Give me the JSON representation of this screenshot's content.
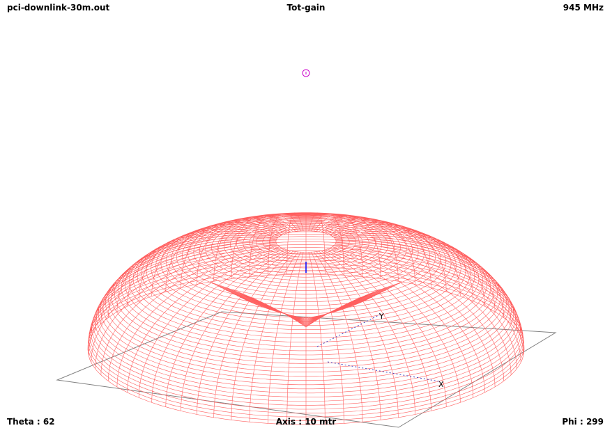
{
  "header": {
    "file_name": "pci-downlink-30m.out",
    "title": "Tot-gain",
    "frequency": "945 MHz"
  },
  "footer": {
    "theta_label": "Theta : 62",
    "axis_label": "Axis : 10 mtr",
    "phi_label": "Phi : 299"
  },
  "plot": {
    "axis_labels": {
      "x": "X",
      "y": "Y"
    },
    "colors": {
      "pattern": "#ff5f5f",
      "ground_plane": "#808080",
      "z_axis": "#0000ff",
      "axis_dots": "#4040c0",
      "marker": "#cc00cc",
      "axis_text": "#000000"
    }
  }
}
